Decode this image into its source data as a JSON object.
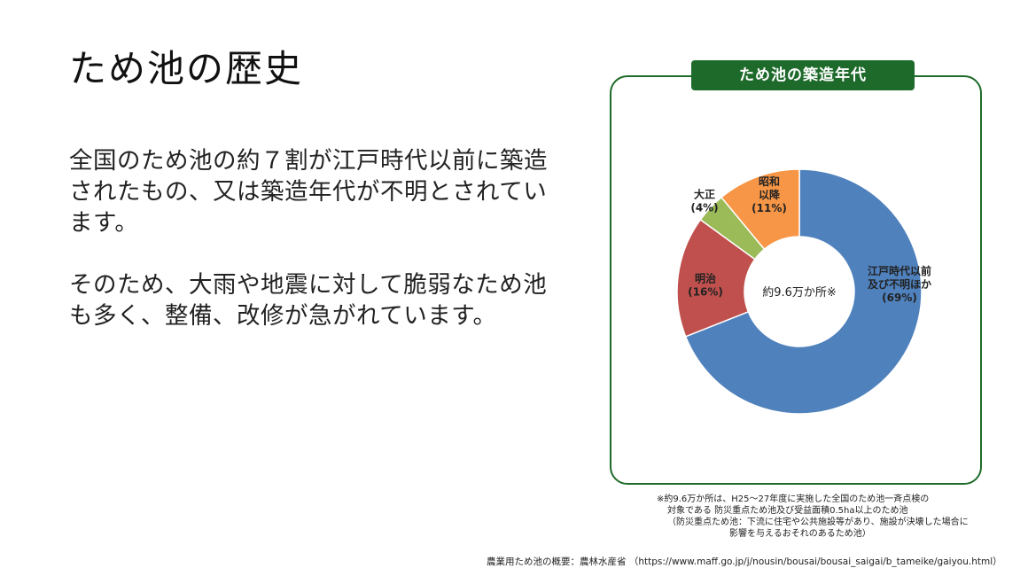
{
  "slide": {
    "title": "ため池の歴史",
    "paragraph1": "全国のため池の約７割が江戸時代以前に築造されたもの、又は築造年代が不明とされています。",
    "paragraph2": "そのため、大雨や地震に対して脆弱なため池も多く、整備、改修が急がれています。"
  },
  "chart_data": {
    "type": "pie",
    "title": "ため池の築造年代",
    "center_label": "約9.6万か所※",
    "slices": [
      {
        "label_lines": [
          "江戸時代以前",
          "及び不明ほか",
          "(69%)"
        ],
        "value": 69,
        "color": "#4f81bd"
      },
      {
        "label_lines": [
          "明治",
          "(16%)"
        ],
        "value": 16,
        "color": "#c0504d"
      },
      {
        "label_lines": [
          "大正",
          "(4%)"
        ],
        "value": 4,
        "color": "#9bbb59"
      },
      {
        "label_lines": [
          "昭和",
          "以降",
          "(11%)"
        ],
        "value": 11,
        "color": "#f79646"
      }
    ]
  },
  "footnote": {
    "line1": "※約9.6万か所は、H25～27年度に実施した全国のため池一斉点検の",
    "line2": "対象である 防災重点ため池及び受益面積0.5ha以上のため池",
    "line3": "（防災重点ため池：下流に住宅や公共施設等があり、施設が決壊した場合に",
    "line4": "影響を与えるおそれのあるため池）"
  },
  "source": "農業用ため池の概要：農林水産省 （https://www.maff.go.jp/j/nousin/bousai/bousai_saigai/b_tameike/gaiyou.html）"
}
